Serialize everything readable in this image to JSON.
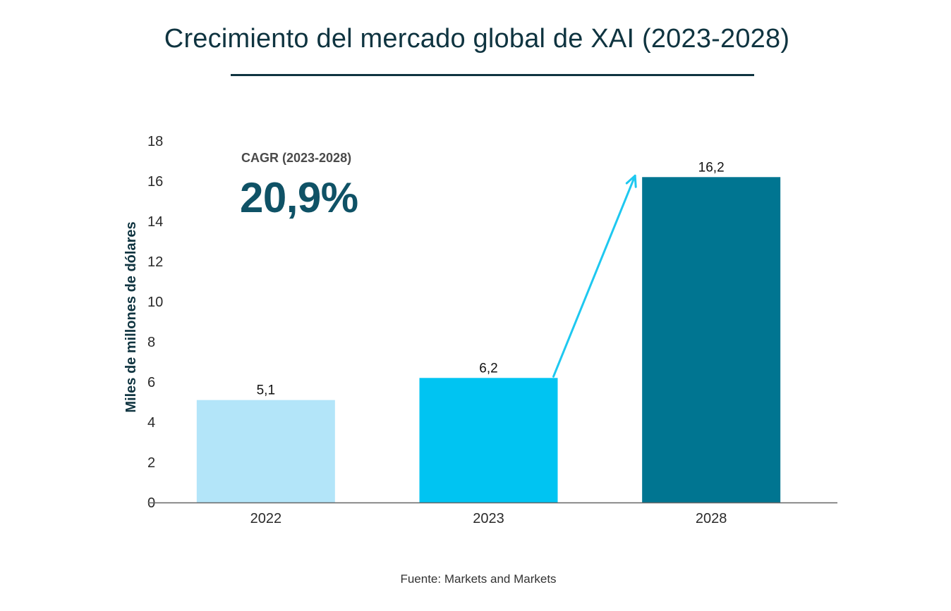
{
  "chart_data": {
    "type": "bar",
    "title": "Crecimiento del mercado global de XAI (2023-2028)",
    "ylabel": "Miles de millones de dólares",
    "xlabel": "",
    "categories": [
      "2022",
      "2023",
      "2028"
    ],
    "values": [
      5.1,
      6.2,
      16.2
    ],
    "value_labels": [
      "5,1",
      "6,2",
      "16,2"
    ],
    "bar_colors": [
      "#b3e5f9",
      "#00c4f2",
      "#007591"
    ],
    "ylim": [
      0,
      18
    ],
    "yticks": [
      0,
      2,
      4,
      6,
      8,
      10,
      12,
      14,
      16,
      18
    ],
    "grid": false,
    "legend": "none",
    "annotation": {
      "label": "CAGR (2023-2028)",
      "value": "20,9%",
      "arrow_from": "2023",
      "arrow_to": "2028",
      "arrow_color": "#1ec8f0"
    },
    "source": "Fuente: Markets and Markets"
  }
}
